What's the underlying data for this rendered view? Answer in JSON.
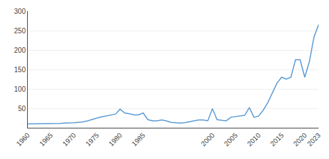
{
  "chart_data": {
    "type": "line",
    "x": [
      1960,
      1961,
      1962,
      1963,
      1964,
      1965,
      1966,
      1967,
      1968,
      1969,
      1970,
      1971,
      1972,
      1973,
      1974,
      1975,
      1976,
      1977,
      1978,
      1979,
      1980,
      1981,
      1982,
      1983,
      1984,
      1985,
      1986,
      1987,
      1988,
      1989,
      1990,
      1991,
      1992,
      1993,
      1994,
      1995,
      1996,
      1997,
      1998,
      1999,
      2000,
      2001,
      2002,
      2003,
      2004,
      2005,
      2006,
      2007,
      2008,
      2009,
      2010,
      2011,
      2012,
      2013,
      2014,
      2015,
      2016,
      2017,
      2018,
      2019,
      2020,
      2021,
      2022,
      2023
    ],
    "values": [
      10,
      10,
      10,
      10,
      10,
      11,
      11,
      11,
      12,
      12,
      13,
      14,
      15,
      18,
      22,
      25,
      28,
      30,
      32,
      35,
      48,
      38,
      36,
      33,
      33,
      38,
      21,
      18,
      18,
      20,
      18,
      14,
      13,
      12,
      13,
      15,
      17,
      20,
      20,
      18,
      49,
      21,
      19,
      18,
      27,
      29,
      30,
      32,
      52,
      27,
      30,
      45,
      65,
      90,
      115,
      130,
      125,
      130,
      175,
      175,
      130,
      170,
      233,
      265
    ],
    "color": "#5b9bd5",
    "xlim": [
      1960,
      2023
    ],
    "xticks": [
      1960,
      1965,
      1970,
      1975,
      1980,
      1985,
      2000,
      2005,
      2010,
      2015,
      2020,
      2023
    ],
    "ylim": [
      0,
      300
    ],
    "yticks": [
      50,
      100,
      150,
      200,
      250,
      300
    ],
    "grid": "y"
  }
}
